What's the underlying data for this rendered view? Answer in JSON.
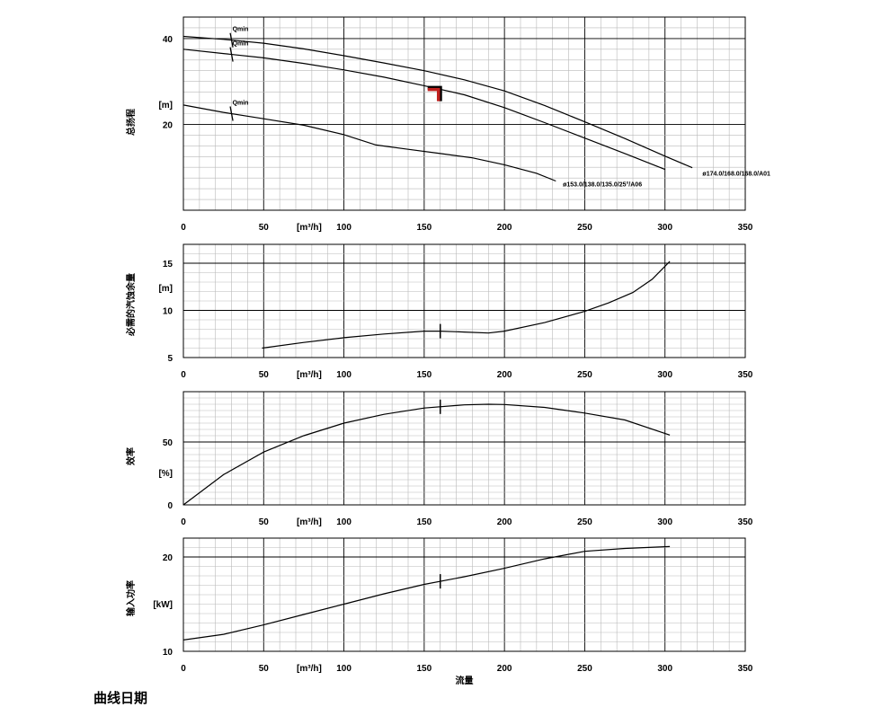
{
  "footer_text": "曲线日期",
  "x_axis": {
    "ticks": [
      0,
      50,
      100,
      150,
      200,
      250,
      300,
      350
    ],
    "unit": "[m³/h]",
    "label": "流量",
    "range": [
      0,
      350
    ]
  },
  "chart_data": [
    {
      "type": "line",
      "id": "head",
      "ylabel": "总扬程",
      "yunit": "[m]",
      "xlim": [
        0,
        350
      ],
      "ylim": [
        0,
        45
      ],
      "yticks": [
        20,
        40
      ],
      "grid": true,
      "series": [
        {
          "name": "ø174.0/168.0/168.0/A01",
          "x": [
            0,
            25,
            50,
            75,
            100,
            125,
            150,
            175,
            200,
            225,
            250,
            275,
            300,
            317
          ],
          "y": [
            40.5,
            39.8,
            38.9,
            37.6,
            36.0,
            34.3,
            32.5,
            30.4,
            27.8,
            24.4,
            20.6,
            16.7,
            12.6,
            9.9
          ],
          "qmin_x": 30,
          "label_x": 320,
          "label_y": 8.5
        },
        {
          "name": "",
          "x": [
            0,
            25,
            50,
            75,
            100,
            125,
            150,
            175,
            200,
            225,
            250,
            275,
            300
          ],
          "y": [
            37.5,
            36.5,
            35.5,
            34.2,
            32.7,
            31.0,
            29.0,
            26.9,
            23.9,
            20.4,
            16.8,
            13.2,
            9.5
          ],
          "qmin_x": 30,
          "label_x": null,
          "label_y": null
        },
        {
          "name": "ø153.0/138.0/135.0/25°/A06",
          "x": [
            0,
            25,
            50,
            75,
            100,
            120,
            140,
            160,
            180,
            200,
            220,
            232
          ],
          "y": [
            24.5,
            22.8,
            21.3,
            19.8,
            17.6,
            15.2,
            14.2,
            13.2,
            12.2,
            10.6,
            8.6,
            6.8
          ],
          "qmin_x": 30,
          "label_x": 233,
          "label_y": 6.0
        }
      ],
      "qmin_label": "Qmin"
    },
    {
      "type": "line",
      "id": "npsh",
      "ylabel": "必需的汽蚀余量",
      "yunit": "[m]",
      "xlim": [
        0,
        350
      ],
      "ylim": [
        5,
        17
      ],
      "yticks": [
        5,
        10,
        15
      ],
      "grid": true,
      "series": [
        {
          "x": [
            49,
            75,
            100,
            125,
            150,
            160,
            175,
            190,
            200,
            225,
            250,
            265,
            280,
            292,
            303
          ],
          "y": [
            6.0,
            6.6,
            7.1,
            7.5,
            7.8,
            7.8,
            7.7,
            7.6,
            7.8,
            8.7,
            9.9,
            10.8,
            11.9,
            13.3,
            15.2
          ]
        }
      ],
      "marker_x": 160
    },
    {
      "type": "line",
      "id": "efficiency",
      "ylabel": "效率",
      "yunit": "[%]",
      "xlim": [
        0,
        350
      ],
      "ylim": [
        0,
        90
      ],
      "yticks": [
        0,
        50
      ],
      "grid": true,
      "series": [
        {
          "x": [
            0,
            25,
            50,
            75,
            100,
            125,
            150,
            175,
            190,
            200,
            225,
            250,
            275,
            303
          ],
          "y": [
            0,
            24,
            42,
            55,
            65,
            72,
            77,
            79.5,
            80,
            79.8,
            77.5,
            73,
            67.5,
            55.5
          ]
        }
      ],
      "marker_x": 160
    },
    {
      "type": "line",
      "id": "power",
      "ylabel": "输入功率",
      "yunit": "[kW]",
      "xlim": [
        0,
        350
      ],
      "ylim": [
        10,
        22
      ],
      "yticks": [
        10,
        20
      ],
      "grid": true,
      "series": [
        {
          "x": [
            0,
            25,
            50,
            75,
            100,
            125,
            150,
            175,
            200,
            225,
            250,
            275,
            303
          ],
          "y": [
            11.2,
            11.8,
            12.8,
            13.9,
            15.0,
            16.1,
            17.1,
            17.9,
            18.8,
            19.8,
            20.6,
            20.9,
            21.1
          ]
        }
      ],
      "marker_x": 160
    }
  ]
}
